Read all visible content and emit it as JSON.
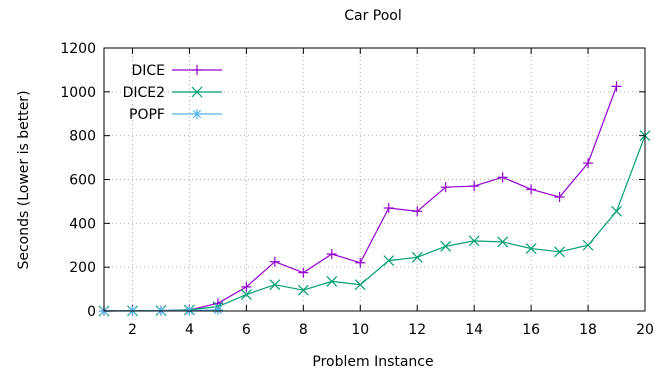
{
  "chart_data": {
    "type": "line",
    "title": "Car Pool",
    "xlabel": "Problem Instance",
    "ylabel": "Seconds (Lower is better)",
    "xlim": [
      1,
      20
    ],
    "ylim": [
      0,
      1200
    ],
    "xticks": [
      2,
      4,
      6,
      8,
      10,
      12,
      14,
      16,
      18,
      20
    ],
    "yticks": [
      0,
      200,
      400,
      600,
      800,
      1000,
      1200
    ],
    "grid": true,
    "legend_position": "top-left",
    "series": [
      {
        "name": "DICE",
        "color": "#9400d3",
        "marker": "plus",
        "x": [
          1,
          2,
          3,
          4,
          5,
          6,
          7,
          8,
          9,
          10,
          11,
          12,
          13,
          14,
          15,
          16,
          17,
          18,
          19
        ],
        "values": [
          0,
          1,
          2,
          5,
          35,
          110,
          225,
          175,
          260,
          220,
          470,
          455,
          565,
          570,
          610,
          555,
          520,
          675,
          1025
        ]
      },
      {
        "name": "DICE2",
        "color": "#009e73",
        "marker": "cross",
        "x": [
          1,
          2,
          3,
          4,
          5,
          6,
          7,
          8,
          9,
          10,
          11,
          12,
          13,
          14,
          15,
          16,
          17,
          18,
          19,
          20
        ],
        "values": [
          0,
          1,
          2,
          5,
          20,
          75,
          120,
          95,
          135,
          120,
          230,
          245,
          295,
          320,
          315,
          285,
          270,
          300,
          455,
          800
        ]
      },
      {
        "name": "POPF",
        "color": "#56b4e9",
        "marker": "star",
        "x": [
          1,
          2,
          3,
          4,
          5
        ],
        "values": [
          0,
          0.5,
          1,
          2,
          5
        ]
      }
    ]
  }
}
